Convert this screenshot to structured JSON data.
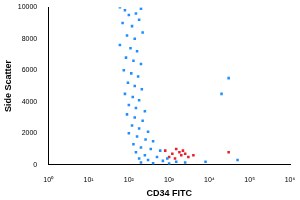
{
  "chart_data": {
    "type": "scatter",
    "x_label": "CD34 FITC",
    "y_label": "Side Scatter",
    "log": "x",
    "grid": false,
    "xlim": [
      1,
      1000000
    ],
    "xticks": [
      {
        "value": 1,
        "label": "10⁰"
      },
      {
        "value": 10,
        "label": "10¹"
      },
      {
        "value": 100,
        "label": "10²"
      },
      {
        "value": 1000,
        "label": "10³"
      },
      {
        "value": 10000,
        "label": "10⁴"
      },
      {
        "value": 100000,
        "label": "10⁵"
      },
      {
        "value": 1000000,
        "label": "10⁶"
      }
    ],
    "ylim": [
      0,
      10000
    ],
    "yticks": [
      0,
      2000,
      4000,
      6000,
      8000,
      10000
    ],
    "series": [
      {
        "color": "#1f8fff",
        "marker": "square",
        "x": [
          60,
          80,
          100,
          150,
          200,
          70,
          120,
          180,
          90,
          140,
          220,
          60,
          110,
          160,
          85,
          130,
          200,
          75,
          115,
          170,
          95,
          140,
          210,
          80,
          125,
          180,
          100,
          150,
          250,
          90,
          140,
          220,
          120,
          180,
          300,
          100,
          160,
          260,
          400,
          130,
          200,
          350,
          600,
          150,
          250,
          500,
          900,
          180,
          300,
          700,
          1500,
          200,
          400,
          1000,
          2500,
          20000,
          30000,
          50000,
          8000
        ],
        "values": [
          10000,
          9800,
          9500,
          9600,
          9900,
          9000,
          8800,
          9200,
          8200,
          8000,
          8400,
          7600,
          7400,
          7200,
          6800,
          6600,
          6400,
          6000,
          5800,
          5600,
          5200,
          5000,
          4800,
          4500,
          4300,
          4100,
          3800,
          3600,
          3400,
          3200,
          3000,
          2800,
          2500,
          2300,
          2100,
          2000,
          1800,
          1600,
          1500,
          1300,
          1100,
          1000,
          900,
          800,
          600,
          500,
          400,
          400,
          300,
          250,
          200,
          150,
          100,
          80,
          150,
          4500,
          5500,
          300,
          200
        ]
      },
      {
        "color": "#e8202a",
        "marker": "square",
        "x": [
          800,
          1200,
          1500,
          2000,
          1000,
          1800,
          2500,
          3000,
          1400,
          2200,
          4000,
          30000
        ],
        "values": [
          900,
          700,
          1000,
          600,
          500,
          800,
          700,
          500,
          400,
          900,
          600,
          800
        ]
      }
    ]
  }
}
